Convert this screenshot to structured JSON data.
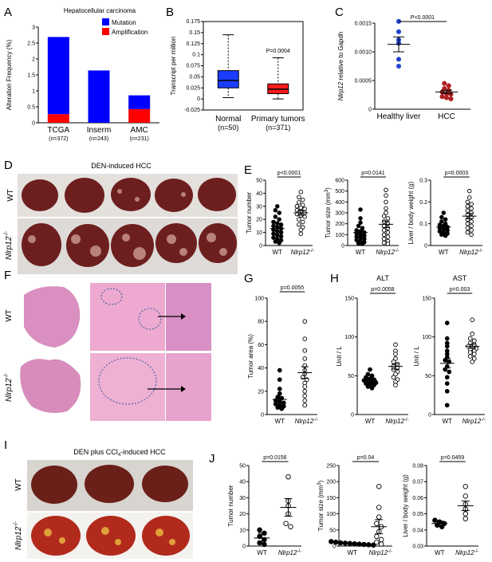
{
  "panels": {
    "A": "A",
    "B": "B",
    "C": "C",
    "D": "D",
    "E": "E",
    "F": "F",
    "G": "G",
    "H": "H",
    "I": "I",
    "J": "J"
  },
  "chart_data": [
    {
      "id": "A",
      "type": "bar",
      "title": "Hepatocellular carcinoma",
      "ylabel": "Alteration Frequency (%)",
      "ylim": [
        0,
        3
      ],
      "yticks": [
        "0",
        "0.5",
        "1",
        "1.5",
        "2",
        "2.5",
        "3"
      ],
      "categories": [
        "TCGA",
        "Inserm",
        "AMC"
      ],
      "sublabels": [
        "(n=372)",
        "(n=243)",
        "(n=231)"
      ],
      "series": [
        {
          "name": "Amplification",
          "color": "#ff0000",
          "values": [
            0.27,
            0.0,
            0.43
          ]
        },
        {
          "name": "Mutation",
          "color": "#0000ff",
          "values": [
            2.42,
            1.64,
            0.43
          ]
        }
      ],
      "legend": "top-right"
    },
    {
      "id": "B",
      "type": "box",
      "ylabel": "Transcript per million",
      "ylim": [
        -0.025,
        0.175
      ],
      "yticks": [
        "-0.025",
        "0",
        "0.025",
        "0.05",
        "0.075",
        "0.1",
        "0.125",
        "0.15",
        "0.175"
      ],
      "categories": [
        "Normal",
        "Primary tumors"
      ],
      "sublabels": [
        "(n=50)",
        "(n=371)"
      ],
      "boxes": [
        {
          "q1": 0.025,
          "median": 0.042,
          "q3": 0.064,
          "min": 0.003,
          "max": 0.145,
          "color": "#1a3cff"
        },
        {
          "q1": 0.012,
          "median": 0.022,
          "q3": 0.034,
          "min": 0.0,
          "max": 0.093,
          "color": "#ff1a1a"
        }
      ],
      "pvalue": "P=0.0004"
    },
    {
      "id": "C",
      "type": "scatter",
      "ylabel_italic": "Nlrp12",
      "ylabel_rest": " relative to Gapdh",
      "ylim": [
        0,
        0.0015
      ],
      "yticks": [
        "0",
        "0.0005",
        "0.0010",
        "0.0015"
      ],
      "categories": [
        "Healthy liver",
        "HCC"
      ],
      "groups": [
        {
          "values": [
            0.00153,
            0.00135,
            0.00121,
            0.00087,
            0.00075,
            0.00115
          ],
          "mean": 0.00113,
          "sem": 0.00013,
          "color": "#2244cc"
        },
        {
          "values": [
            0.00045,
            0.00041,
            0.00036,
            0.00033,
            0.0003,
            0.00027,
            0.00026,
            0.00022,
            0.0002,
            0.00018
          ],
          "mean": 0.0003,
          "sem": 3e-05,
          "color": "#b02020"
        }
      ],
      "pvalue": "P<0.0001"
    },
    {
      "id": "E1",
      "type": "scatter",
      "ylabel": "Tumor number",
      "ylim": [
        0,
        50
      ],
      "yticks": [
        "0",
        "10",
        "20",
        "30",
        "40",
        "50"
      ],
      "categories": [
        "WT",
        "Nlrp12-/-"
      ],
      "groups": [
        {
          "values": [
            30,
            27,
            25,
            22,
            20,
            18,
            17,
            16,
            15,
            14,
            13,
            12,
            11,
            10,
            9,
            8,
            7,
            6,
            5,
            4,
            3,
            2
          ],
          "mean": 13,
          "sem": 1.8,
          "filled": true
        },
        {
          "values": [
            41,
            37,
            35,
            33,
            31,
            30,
            29,
            28,
            27,
            26,
            25,
            24,
            23,
            22,
            20,
            18,
            16,
            14,
            12,
            9
          ],
          "mean": 25,
          "sem": 1.8,
          "filled": false
        }
      ],
      "pvalue": "p<0.0001"
    },
    {
      "id": "E2",
      "type": "scatter",
      "ylabel": "Tumor size (mm",
      "ylim": [
        0,
        600
      ],
      "yticks": [
        "0",
        "100",
        "200",
        "300",
        "400",
        "500",
        "600"
      ],
      "categories": [
        "WT",
        "Nlrp12-/-"
      ],
      "groups": [
        {
          "values": [
            330,
            250,
            210,
            180,
            160,
            140,
            130,
            120,
            110,
            100,
            90,
            80,
            70,
            60,
            50,
            40,
            30,
            20,
            15
          ],
          "mean": 120,
          "sem": 18,
          "filled": true
        },
        {
          "values": [
            510,
            460,
            400,
            340,
            300,
            270,
            250,
            220,
            200,
            180,
            160,
            140,
            120,
            100,
            80,
            60,
            40,
            25,
            15
          ],
          "mean": 195,
          "sem": 30,
          "filled": false
        }
      ],
      "pvalue": "p=0.0141"
    },
    {
      "id": "E3",
      "type": "scatter",
      "ylabel": "Liver / body weight (g)",
      "ylim": [
        0,
        0.3
      ],
      "yticks": [
        "0",
        "0.1",
        "0.2",
        "0.3"
      ],
      "categories": [
        "WT",
        "Nlrp12-/-"
      ],
      "groups": [
        {
          "values": [
            0.15,
            0.13,
            0.12,
            0.11,
            0.1,
            0.095,
            0.09,
            0.085,
            0.08,
            0.075,
            0.07,
            0.065,
            0.06,
            0.055,
            0.05,
            0.045
          ],
          "mean": 0.085,
          "sem": 0.008,
          "filled": true
        },
        {
          "values": [
            0.25,
            0.22,
            0.2,
            0.19,
            0.18,
            0.17,
            0.16,
            0.15,
            0.14,
            0.13,
            0.12,
            0.11,
            0.1,
            0.09,
            0.08,
            0.07,
            0.06,
            0.05
          ],
          "mean": 0.135,
          "sem": 0.012,
          "filled": false
        }
      ],
      "pvalue": "p=0.0003"
    },
    {
      "id": "G",
      "type": "scatter",
      "ylabel": "Tumor area (%)",
      "ylim": [
        0,
        100
      ],
      "yticks": [
        "0",
        "20",
        "40",
        "60",
        "80",
        "100"
      ],
      "categories": [
        "WT",
        "Nlrp12-/-"
      ],
      "groups": [
        {
          "values": [
            38,
            30,
            22,
            18,
            15,
            14,
            12,
            11,
            10,
            9,
            8,
            7,
            6,
            5
          ],
          "mean": 13,
          "sem": 2.5,
          "filled": true
        },
        {
          "values": [
            80,
            65,
            55,
            48,
            42,
            38,
            35,
            32,
            30,
            27,
            24,
            20,
            16,
            12,
            8
          ],
          "mean": 36,
          "sem": 5,
          "filled": false
        }
      ],
      "pvalue": "p=0.0055"
    },
    {
      "id": "H1",
      "type": "scatter",
      "title": "ALT",
      "ylabel": "Unit / L",
      "ylim": [
        0,
        150
      ],
      "yticks": [
        "0",
        "50",
        "100",
        "150"
      ],
      "categories": [
        "WT",
        "Nlrp12-/-"
      ],
      "groups": [
        {
          "values": [
            58,
            52,
            50,
            48,
            46,
            45,
            44,
            43,
            42,
            41,
            40,
            39,
            38,
            36,
            34
          ],
          "mean": 44,
          "sem": 1.5,
          "filled": true
        },
        {
          "values": [
            90,
            82,
            78,
            72,
            68,
            65,
            62,
            60,
            58,
            55,
            52,
            48,
            45,
            42,
            38
          ],
          "mean": 62,
          "sem": 3.5,
          "filled": false
        }
      ],
      "pvalue": "p=0.0058"
    },
    {
      "id": "H2",
      "type": "scatter",
      "title": "AST",
      "ylabel": "Unit / L",
      "ylim": [
        0,
        150
      ],
      "yticks": [
        "0",
        "50",
        "100",
        "150"
      ],
      "categories": [
        "WT",
        "Nlrp12-/-"
      ],
      "groups": [
        {
          "values": [
            118,
            98,
            92,
            88,
            82,
            78,
            74,
            70,
            68,
            62,
            58,
            55,
            48,
            40,
            30,
            12
          ],
          "mean": 66,
          "sem": 6,
          "filled": true
        },
        {
          "values": [
            122,
            104,
            98,
            95,
            92,
            90,
            88,
            86,
            85,
            84,
            82,
            80,
            78,
            75,
            72,
            68
          ],
          "mean": 88,
          "sem": 2.5,
          "filled": false
        }
      ],
      "pvalue": "p=0.003"
    },
    {
      "id": "J1",
      "type": "scatter",
      "ylabel": "Tumor number",
      "ylim": [
        0,
        50
      ],
      "yticks": [
        "0",
        "10",
        "20",
        "30",
        "40",
        "50"
      ],
      "categories": [
        "WT",
        "Nlrp12-/-"
      ],
      "groups": [
        {
          "values": [
            10,
            8,
            6,
            4,
            2,
            1
          ],
          "mean": 5,
          "sem": 3,
          "filled": true
        },
        {
          "values": [
            43,
            28,
            25,
            20,
            14,
            12
          ],
          "mean": 24,
          "sem": 5.5,
          "filled": false
        }
      ],
      "pvalue": "p=0.0156"
    },
    {
      "id": "J2",
      "type": "scatter",
      "ylabel": "Tumor size (mm",
      "ylim": [
        0,
        250
      ],
      "yticks": [
        "0",
        "50",
        "100",
        "150",
        "200",
        "250"
      ],
      "categories": [
        "WT",
        "Nlrp12-/-"
      ],
      "groups": [
        {
          "values": [
            14,
            12,
            10,
            9,
            8,
            7,
            6,
            5,
            4,
            3
          ],
          "mean": 7,
          "sem": 1.5,
          "filled": true
        },
        {
          "values": [
            185,
            120,
            90,
            70,
            60,
            45,
            30,
            20,
            12,
            6
          ],
          "mean": 60,
          "sem": 22,
          "filled": false
        }
      ],
      "pvalue": "p=0.04"
    },
    {
      "id": "J3",
      "type": "scatter",
      "ylabel": "Liver / body weight (g)",
      "ylim": [
        0.03,
        0.08
      ],
      "yticks": [
        "0.03",
        "0.04",
        "0.05",
        "0.06",
        "0.07",
        "0.08"
      ],
      "categories": [
        "WT",
        "Nlrp12-/-"
      ],
      "groups": [
        {
          "values": [
            0.046,
            0.045,
            0.044,
            0.043,
            0.042
          ],
          "mean": 0.044,
          "sem": 0.0015,
          "filled": true
        },
        {
          "values": [
            0.067,
            0.061,
            0.056,
            0.053,
            0.05,
            0.047
          ],
          "mean": 0.055,
          "sem": 0.003,
          "filled": false
        }
      ],
      "pvalue": "p=0.0459"
    }
  ],
  "photos": {
    "D": {
      "title": "DEN-induced HCC",
      "row1": "WT",
      "row2": "Nlrp12",
      "row2_sup": "-/-"
    },
    "F": {
      "row1": "WT",
      "row2": "Nlrp12",
      "row2_sup": "-/-"
    },
    "I": {
      "title_pre": "DEN plus CCl",
      "title_sub": "4",
      "title_post": "-induced HCC",
      "row1": "WT",
      "row2": "Nlrp12",
      "row2_sup": "-/-"
    }
  },
  "labels": {
    "ko_italic": "Nlrp12",
    "ko_sup": "-/-",
    "mm3_sup": "3",
    "mm3_close": ")"
  }
}
